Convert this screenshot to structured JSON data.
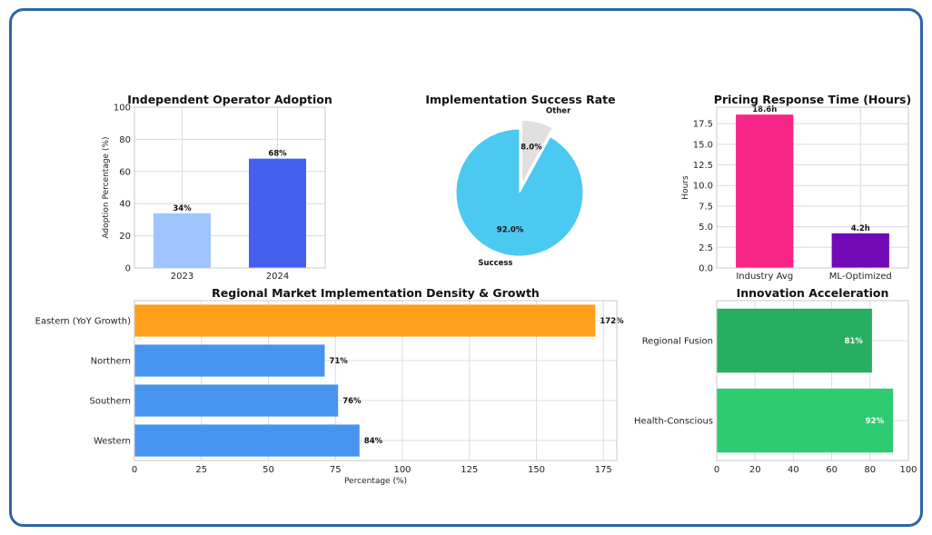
{
  "chart_data": [
    {
      "id": "adoption",
      "type": "bar",
      "title": "Independent Operator Adoption",
      "categories": [
        "2023",
        "2024"
      ],
      "values": [
        34,
        68
      ],
      "data_labels": [
        "34%",
        "68%"
      ],
      "colors": [
        "#a0c4ff",
        "#4361ee"
      ],
      "ylabel": "Adoption Percentage (%)",
      "ylim": [
        0,
        100
      ],
      "yticks": [
        "0",
        "20",
        "40",
        "60",
        "80",
        "100"
      ],
      "grid": true
    },
    {
      "id": "success",
      "type": "pie",
      "title": "Implementation Success Rate",
      "labels": [
        "Success",
        "Other"
      ],
      "values": [
        92.0,
        8.0
      ],
      "data_labels": [
        "92.0%",
        "8.0%"
      ],
      "colors": [
        "#4cc9f0",
        "#e0e0e0"
      ]
    },
    {
      "id": "pricing",
      "type": "bar",
      "title": "Pricing Response Time (Hours)",
      "categories": [
        "Industry Avg",
        "ML-Optimized"
      ],
      "values": [
        18.6,
        4.2
      ],
      "data_labels": [
        "18.6h",
        "4.2h"
      ],
      "colors": [
        "#f72585",
        "#7209b7"
      ],
      "ylabel": "Hours",
      "ylim": [
        0,
        19.5
      ],
      "yticks": [
        "0.0",
        "2.5",
        "5.0",
        "7.5",
        "10.0",
        "12.5",
        "15.0",
        "17.5"
      ],
      "grid": true
    },
    {
      "id": "regional",
      "type": "bar",
      "orientation": "horizontal",
      "title": "Regional Market Implementation Density & Growth",
      "categories": [
        "Eastern (YoY Growth)",
        "Northern",
        "Southern",
        "Western"
      ],
      "values": [
        172,
        71,
        76,
        84
      ],
      "data_labels": [
        "172%",
        "71%",
        "76%",
        "84%"
      ],
      "colors": [
        "#ff9f1c",
        "#4895ef",
        "#4895ef",
        "#4895ef"
      ],
      "xlabel": "Percentage (%)",
      "xlim": [
        0,
        180
      ],
      "xticks": [
        "0",
        "25",
        "50",
        "75",
        "100",
        "125",
        "150",
        "175"
      ],
      "grid": true
    },
    {
      "id": "innovation",
      "type": "bar",
      "orientation": "horizontal",
      "title": "Innovation Acceleration",
      "categories": [
        "Regional Fusion",
        "Health-Conscious"
      ],
      "values": [
        81,
        92
      ],
      "data_labels": [
        "81%",
        "92%"
      ],
      "colors": [
        "#27ae60",
        "#2ecc71"
      ],
      "xlim": [
        0,
        100
      ],
      "xticks": [
        "0",
        "20",
        "40",
        "60",
        "80",
        "100"
      ],
      "grid": true
    }
  ]
}
